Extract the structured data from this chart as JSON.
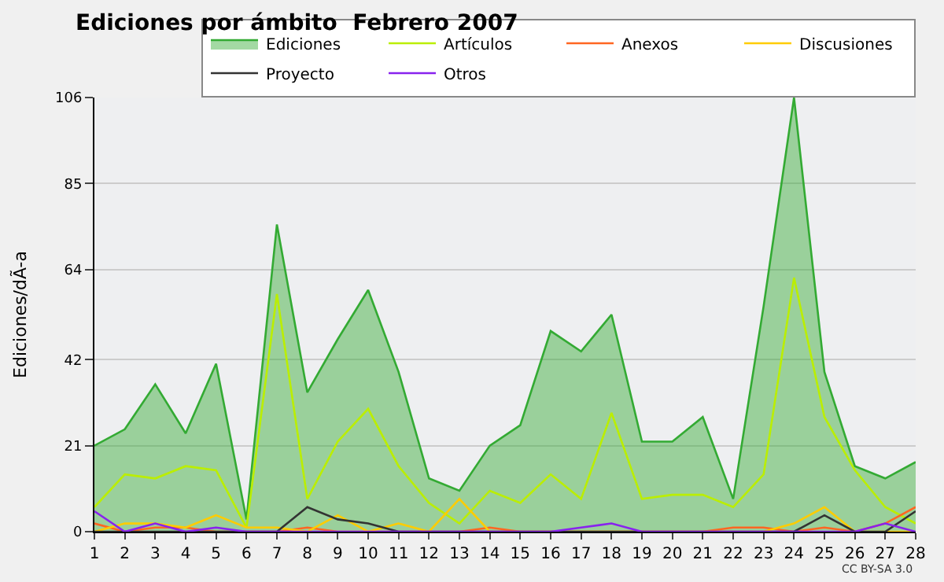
{
  "chart_data": {
    "type": "line",
    "title": "Ediciones por ámbito  Febrero 2007",
    "ylabel": "Ediciones/dÃ-a",
    "x": [
      1,
      2,
      3,
      4,
      5,
      6,
      7,
      8,
      9,
      10,
      11,
      12,
      13,
      14,
      15,
      16,
      17,
      18,
      19,
      20,
      21,
      22,
      23,
      24,
      25,
      26,
      27,
      28
    ],
    "xlim": [
      1,
      28
    ],
    "xticks": [
      1,
      2,
      3,
      4,
      5,
      6,
      7,
      8,
      9,
      10,
      11,
      12,
      13,
      14,
      15,
      16,
      17,
      18,
      19,
      20,
      21,
      22,
      23,
      24,
      25,
      26,
      27,
      28
    ],
    "ylim": [
      0,
      106
    ],
    "yticks": [
      0,
      21,
      42,
      64,
      85,
      106
    ],
    "grid": "y",
    "legend": "top right",
    "marker": "none",
    "line_style": "solid",
    "series": [
      {
        "name": "Ediciones",
        "type": "area",
        "color": "#33aa33",
        "values": [
          21,
          25,
          36,
          24,
          41,
          3,
          75,
          34,
          47,
          59,
          39,
          13,
          10,
          21,
          26,
          49,
          44,
          53,
          22,
          22,
          28,
          8,
          55,
          106,
          39,
          16,
          13,
          17
        ]
      },
      {
        "name": "Artículos",
        "color": "#bbee00",
        "values": [
          6,
          14,
          13,
          16,
          15,
          1,
          58,
          8,
          22,
          30,
          16,
          7,
          2,
          10,
          7,
          14,
          8,
          29,
          8,
          9,
          9,
          6,
          14,
          62,
          28,
          15,
          6,
          2
        ]
      },
      {
        "name": "Anexos",
        "color": "#ff6622",
        "values": [
          2,
          0,
          1,
          1,
          0,
          0,
          0,
          1,
          0,
          0,
          0,
          0,
          0,
          1,
          0,
          0,
          0,
          0,
          0,
          0,
          0,
          1,
          1,
          0,
          1,
          0,
          2,
          6
        ]
      },
      {
        "name": "Discusiones",
        "color": "#ffcc00",
        "values": [
          0,
          2,
          2,
          1,
          4,
          1,
          1,
          0,
          4,
          0,
          2,
          0,
          8,
          0,
          0,
          0,
          0,
          0,
          0,
          0,
          0,
          0,
          0,
          2,
          6,
          0,
          0,
          0
        ]
      },
      {
        "name": "Proyecto",
        "color": "#333333",
        "values": [
          0,
          0,
          0,
          0,
          0,
          0,
          0,
          6,
          3,
          2,
          0,
          0,
          0,
          0,
          0,
          0,
          0,
          0,
          0,
          0,
          0,
          0,
          0,
          0,
          4,
          0,
          0,
          5
        ]
      },
      {
        "name": "Otros",
        "color": "#8822ee",
        "values": [
          5,
          0,
          2,
          0,
          1,
          0,
          0,
          0,
          0,
          0,
          0,
          0,
          0,
          0,
          0,
          0,
          1,
          2,
          0,
          0,
          0,
          0,
          0,
          0,
          0,
          0,
          2,
          0
        ]
      }
    ],
    "annotations": [
      "CC BY-SA 3.0"
    ]
  }
}
